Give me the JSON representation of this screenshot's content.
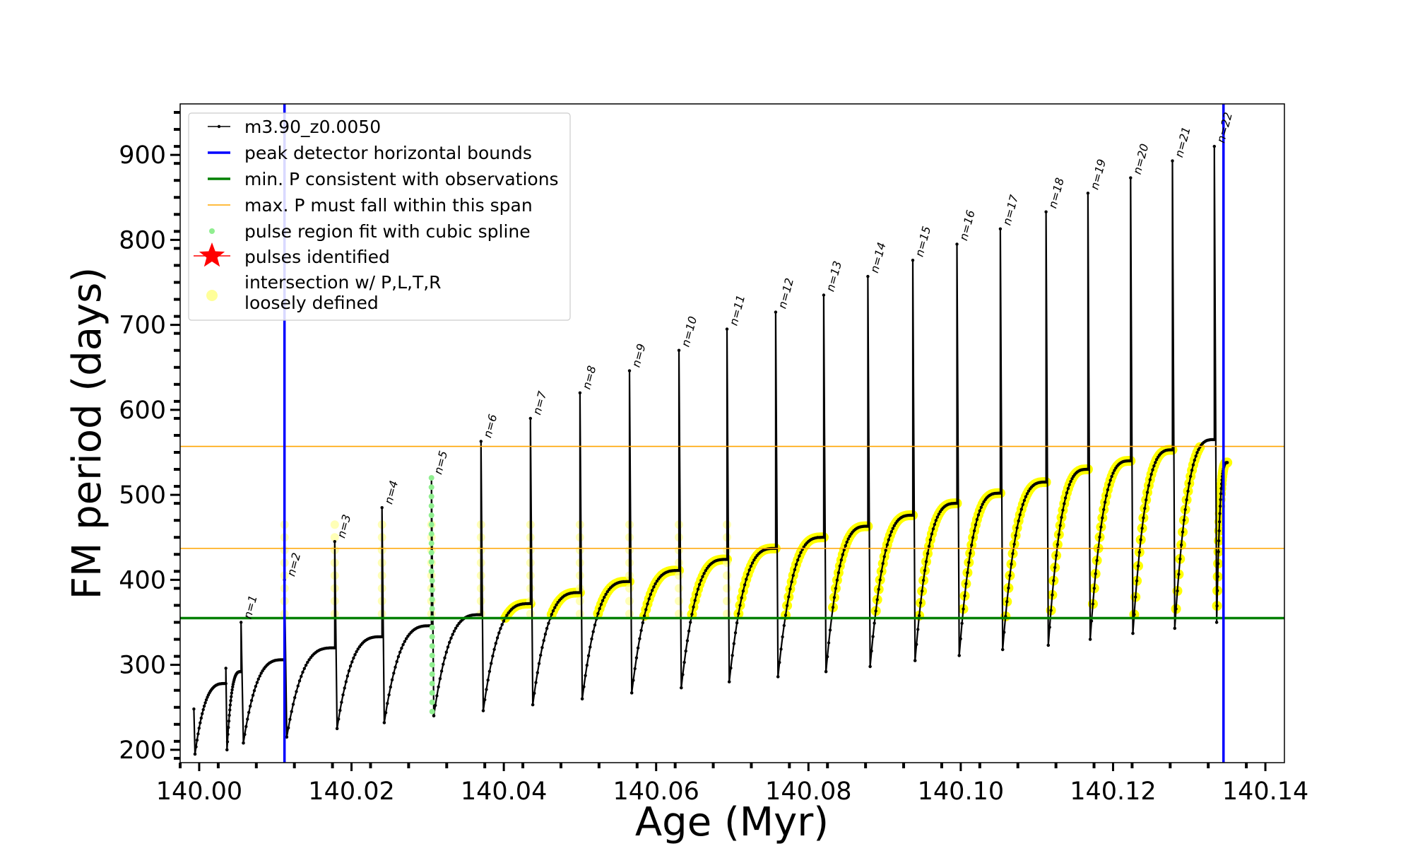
{
  "chart_data": {
    "type": "line",
    "xlabel": "Age (Myr)",
    "ylabel": "FM period (days)",
    "xlim": [
      139.9975,
      140.1425
    ],
    "ylim": [
      184.9,
      960.0
    ],
    "x_ticks": [
      140.0,
      140.02,
      140.04,
      140.06,
      140.08,
      140.1,
      140.12,
      140.14
    ],
    "x_tick_labels": [
      "140.00",
      "140.02",
      "140.04",
      "140.06",
      "140.08",
      "140.10",
      "140.12",
      "140.14"
    ],
    "y_ticks": [
      200,
      300,
      400,
      500,
      600,
      700,
      800,
      900
    ],
    "y_tick_labels": [
      "200",
      "300",
      "400",
      "500",
      "600",
      "700",
      "800",
      "900"
    ],
    "grid": false,
    "legend_position": "upper-left",
    "legend": [
      {
        "label": "m3.90_z0.0050",
        "style": "line-dot",
        "color": "#000000"
      },
      {
        "label": "peak detector horizontal bounds",
        "style": "line",
        "color": "#0000ff"
      },
      {
        "label": "min. P consistent with observations",
        "style": "line",
        "color": "#008000"
      },
      {
        "label": "max. P must fall within this span",
        "style": "thin-line",
        "color": "#ffa500"
      },
      {
        "label": "pulse region fit with cubic spline",
        "style": "dot",
        "color": "#90ee90"
      },
      {
        "label": "pulses identified",
        "style": "star",
        "color": "#ff0000"
      },
      {
        "label": "intersection w/ P,L,T,R",
        "label2": "loosely defined",
        "style": "circle",
        "color": "#ffff99"
      }
    ],
    "vertical_lines": {
      "x": [
        140.0112,
        140.1345
      ],
      "color": "#0000ff"
    },
    "min_period_line": {
      "y": 355,
      "color": "#008000"
    },
    "max_period_span": {
      "y": [
        437,
        557
      ],
      "color": "#ffa500"
    },
    "series": [
      {
        "name": "m3.90_z0.0050",
        "color": "#000000",
        "start_age": 139.9993,
        "end_age": 140.135,
        "pulses": [
          {
            "label": "n=1",
            "age": 140.0055,
            "peak": 350,
            "min_before": 292,
            "min_after": 208,
            "start": 200
          },
          {
            "label": "n=2",
            "age": 140.0112,
            "peak": 400,
            "min_before": 306,
            "min_after": 215,
            "start": 208
          },
          {
            "label": "n=3",
            "age": 140.0178,
            "peak": 445,
            "min_before": 320,
            "min_after": 225,
            "start": 215
          },
          {
            "label": "n=4",
            "age": 140.024,
            "peak": 485,
            "min_before": 333,
            "min_after": 232,
            "start": 225
          },
          {
            "label": "n=5",
            "age": 140.0305,
            "peak": 520,
            "min_before": 346,
            "min_after": 240,
            "start": 232
          },
          {
            "label": "n=6",
            "age": 140.037,
            "peak": 563,
            "min_before": 359,
            "min_after": 246,
            "start": 240
          },
          {
            "label": "n=7",
            "age": 140.0435,
            "peak": 590,
            "min_before": 372,
            "min_after": 253,
            "start": 246
          },
          {
            "label": "n=8",
            "age": 140.05,
            "peak": 620,
            "min_before": 385,
            "min_after": 260,
            "start": 253
          },
          {
            "label": "n=9",
            "age": 140.0565,
            "peak": 646,
            "min_before": 398,
            "min_after": 267,
            "start": 260
          },
          {
            "label": "n=10",
            "age": 140.063,
            "peak": 670,
            "min_before": 411,
            "min_after": 273,
            "start": 267
          },
          {
            "label": "n=11",
            "age": 140.0693,
            "peak": 695,
            "min_before": 424,
            "min_after": 280,
            "start": 273
          },
          {
            "label": "n=12",
            "age": 140.0757,
            "peak": 715,
            "min_before": 437,
            "min_after": 286,
            "start": 280
          },
          {
            "label": "n=13",
            "age": 140.082,
            "peak": 735,
            "min_before": 450,
            "min_after": 292,
            "start": 286
          },
          {
            "label": "n=14",
            "age": 140.0878,
            "peak": 757,
            "min_before": 463,
            "min_after": 298,
            "start": 292
          },
          {
            "label": "n=15",
            "age": 140.0937,
            "peak": 776,
            "min_before": 476,
            "min_after": 305,
            "start": 298
          },
          {
            "label": "n=16",
            "age": 140.0995,
            "peak": 795,
            "min_before": 490,
            "min_after": 311,
            "start": 305
          },
          {
            "label": "n=17",
            "age": 140.1052,
            "peak": 813,
            "min_before": 502,
            "min_after": 318,
            "start": 311
          },
          {
            "label": "n=18",
            "age": 140.1112,
            "peak": 833,
            "min_before": 515,
            "min_after": 323,
            "start": 318
          },
          {
            "label": "n=19",
            "age": 140.1167,
            "peak": 855,
            "min_before": 530,
            "min_after": 330,
            "start": 323
          },
          {
            "label": "n=20",
            "age": 140.1223,
            "peak": 873,
            "min_before": 540,
            "min_after": 337,
            "start": 330
          },
          {
            "label": "n=21",
            "age": 140.1278,
            "peak": 893,
            "min_before": 553,
            "min_after": 343,
            "start": 337
          },
          {
            "label": "n=22",
            "age": 140.1333,
            "peak": 910,
            "min_before": 565,
            "min_after": 350,
            "start": 343
          }
        ],
        "final_value": 538
      }
    ],
    "spline_fit": {
      "color": "#90ee90",
      "age": 140.0305,
      "range": [
        245,
        520
      ]
    },
    "intersection_band": {
      "color": "#ffff00",
      "from_pulse": 6,
      "lower": 355,
      "upper": 557
    }
  }
}
